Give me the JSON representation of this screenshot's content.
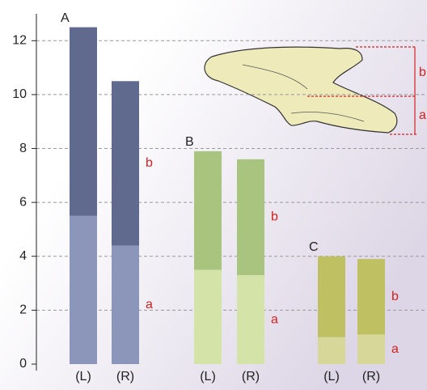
{
  "chart_data": {
    "type": "bar",
    "stacked": true,
    "groups": [
      "A",
      "B",
      "C"
    ],
    "categories": [
      "(L)",
      "(R)",
      "(L)",
      "(R)",
      "(L)",
      "(R)"
    ],
    "series": [
      {
        "name": "a",
        "colors": [
          "#8c96bb",
          "#8c96bb",
          "#d4e4a8",
          "#d4e4a8",
          "#d8d79a",
          "#d8d79a"
        ],
        "values": [
          5.5,
          4.4,
          3.5,
          3.3,
          1.0,
          1.1
        ]
      },
      {
        "name": "b",
        "colors": [
          "#5f6a8e",
          "#5f6a8e",
          "#a9c47e",
          "#a9c47e",
          "#bfc062",
          "#bfc062"
        ],
        "values": [
          7.0,
          6.1,
          4.4,
          4.3,
          3.0,
          2.8
        ]
      }
    ],
    "ylim": [
      0,
      13
    ],
    "yticks": [
      0,
      2,
      4,
      6,
      8,
      10,
      12
    ],
    "grid": true
  }
}
